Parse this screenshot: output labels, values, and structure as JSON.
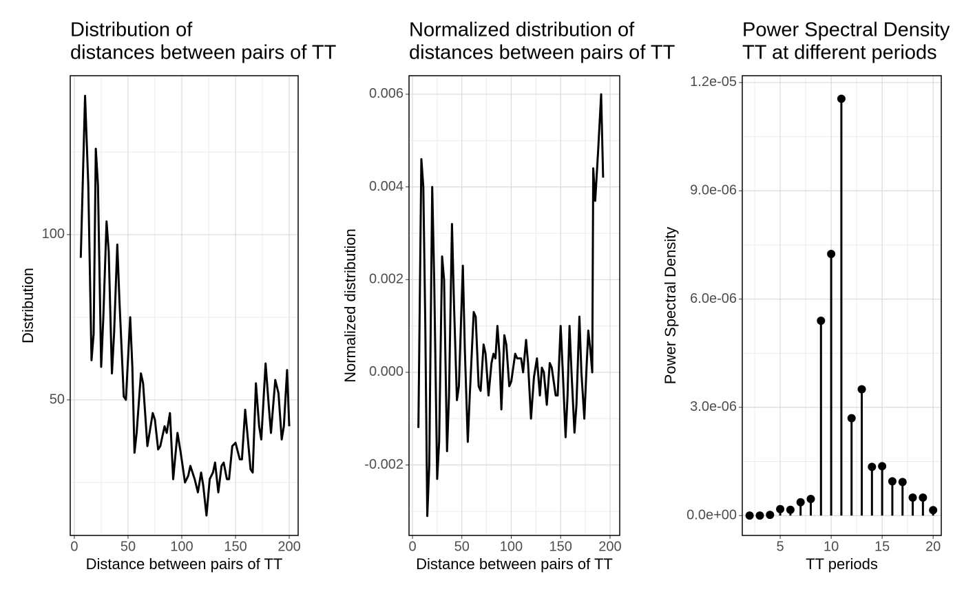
{
  "chart_data": [
    {
      "type": "line",
      "title": [
        "Distribution of",
        "distances between pairs of TT"
      ],
      "xlabel": "Distance between pairs of TT",
      "ylabel": "Distribution",
      "color": "#000000",
      "grid": true,
      "xlim": [
        -3.8,
        208.3
      ],
      "ylim": [
        8.96,
        148.1
      ],
      "xticks": [
        0,
        50,
        100,
        150,
        200
      ],
      "x_minor_ticks": [
        25,
        75,
        125,
        175
      ],
      "yticks": [
        50,
        100
      ],
      "y_minor_ticks": [
        25,
        75,
        125
      ],
      "x": [
        6,
        10,
        13,
        16,
        18,
        20,
        22,
        25,
        27,
        30,
        32,
        35,
        37,
        40,
        42,
        46,
        48,
        52,
        54,
        56,
        58,
        62,
        64,
        68,
        70,
        73,
        75,
        78,
        80,
        84,
        86,
        89,
        92,
        94,
        96,
        99,
        103,
        106,
        108,
        112,
        115,
        118,
        120,
        123,
        126,
        129,
        131,
        134,
        137,
        139,
        142,
        144,
        147,
        150,
        154,
        156,
        159,
        161,
        164,
        166,
        169,
        172,
        174,
        178,
        181,
        183,
        187,
        190,
        193,
        195,
        198,
        200
      ],
      "values": [
        93,
        142,
        115,
        62,
        70,
        126,
        115,
        60,
        75,
        104,
        95,
        58,
        70,
        97,
        80,
        51,
        50,
        75,
        60,
        34,
        40,
        58,
        55,
        36,
        40,
        46,
        44,
        35,
        36,
        42,
        40,
        46,
        26,
        33,
        40,
        34,
        25,
        27,
        30,
        26,
        22,
        28,
        24,
        15,
        26,
        28,
        31,
        22,
        30,
        31,
        26,
        26,
        36,
        37,
        32,
        32,
        47,
        40,
        29,
        28,
        55,
        42,
        38,
        61,
        48,
        40,
        56,
        52,
        38,
        42,
        59,
        42
      ]
    },
    {
      "type": "line",
      "title": [
        "Normalized distribution of",
        "distances between pairs of TT"
      ],
      "xlabel": "Distance between pairs of TT",
      "ylabel": "Normalized distribution",
      "color": "#000000",
      "grid": true,
      "xlim": [
        -3.5,
        209.8
      ],
      "ylim": [
        -0.00352,
        0.0064
      ],
      "xticks": [
        0,
        50,
        100,
        150,
        200
      ],
      "x_minor_ticks": [
        25,
        75,
        125,
        175
      ],
      "yticks": [
        {
          "value": -0.002,
          "label": "-0.002"
        },
        {
          "value": 0,
          "label": "0.000"
        },
        {
          "value": 0.002,
          "label": "0.002"
        },
        {
          "value": 0.004,
          "label": "0.004"
        },
        {
          "value": 0.006,
          "label": "0.006"
        }
      ],
      "y_minor_ticks": [
        -0.003,
        -0.001,
        0.001,
        0.003,
        0.005
      ],
      "x": [
        6,
        9,
        11,
        13,
        15,
        17,
        20,
        22,
        25,
        27,
        30,
        32,
        35,
        37,
        40,
        42,
        45,
        47,
        51,
        53,
        56,
        58,
        62,
        64,
        67,
        69,
        72,
        74,
        77,
        80,
        82,
        84,
        86,
        88,
        90,
        93,
        95,
        98,
        100,
        104,
        106,
        110,
        112,
        115,
        117,
        120,
        123,
        126,
        129,
        131,
        133,
        136,
        139,
        141,
        145,
        147,
        150,
        152,
        155,
        157,
        159,
        161,
        164,
        166,
        169,
        171,
        174,
        176,
        178,
        180,
        182,
        183,
        185,
        188,
        191,
        193
      ],
      "values": [
        -0.0012,
        0.0046,
        0.004,
        0.001,
        -0.0031,
        -0.002,
        0.004,
        0.002,
        -0.0023,
        -0.0015,
        0.0025,
        0.002,
        -0.0017,
        -0.0005,
        0.0032,
        0.0015,
        -0.0006,
        -0.0003,
        0.0023,
        0.0005,
        -0.0015,
        -0.0005,
        0.0013,
        0.0012,
        -0.0003,
        -0.0004,
        0.0006,
        0.0004,
        -0.0005,
        0.0002,
        0.0004,
        0.0003,
        0.001,
        0.0004,
        -0.0008,
        0.0008,
        0.0006,
        -0.0003,
        -0.0002,
        0.0004,
        0.0003,
        0.0003,
        0.0,
        0.0007,
        0.0002,
        -0.001,
        -0.0001,
        0.0003,
        -0.0005,
        0.0001,
        0.0,
        -0.0007,
        0.0002,
        0.0001,
        -0.0005,
        -0.0005,
        0.001,
        0.0001,
        -0.0014,
        -0.0005,
        0.001,
        0.0,
        -0.0013,
        -0.0007,
        0.0012,
        0.0,
        -0.001,
        0.0,
        0.0009,
        0.0005,
        0.0,
        0.0044,
        0.0037,
        0.0048,
        0.006,
        0.0042
      ]
    },
    {
      "type": "lollipop",
      "title": [
        "Power Spectral Density",
        "TT at different periods"
      ],
      "xlabel": "TT periods",
      "ylabel": "Power Spectral Density",
      "color": "#000000",
      "grid": true,
      "xlim": [
        1.28,
        20.8
      ],
      "ylim": [
        -5.5e-07,
        1.219e-05
      ],
      "xticks": [
        5,
        10,
        15,
        20
      ],
      "x_minor_ticks": [
        2.5,
        7.5,
        12.5,
        17.5
      ],
      "yticks": [
        {
          "value": 0,
          "label": "0.0e+00"
        },
        {
          "value": 3e-06,
          "label": "3.0e-06"
        },
        {
          "value": 6e-06,
          "label": "6.0e-06"
        },
        {
          "value": 9e-06,
          "label": "9.0e-06"
        },
        {
          "value": 1.2e-05,
          "label": "1.2e-05"
        }
      ],
      "y_minor_ticks": [
        1.5e-06,
        4.5e-06,
        7.5e-06,
        1.05e-05
      ],
      "x": [
        2,
        3,
        4,
        5,
        6,
        7,
        8,
        9,
        10,
        11,
        12,
        13,
        14,
        15,
        16,
        17,
        18,
        19,
        20
      ],
      "values": [
        0,
        0,
        2e-08,
        1.8e-07,
        1.6e-07,
        3.7e-07,
        4.6e-07,
        5.4e-06,
        7.25e-06,
        1.155e-05,
        2.7e-06,
        3.5e-06,
        1.35e-06,
        1.37e-06,
        9.5e-07,
        9.3e-07,
        5e-07,
        5e-07,
        1.5e-07
      ]
    }
  ]
}
